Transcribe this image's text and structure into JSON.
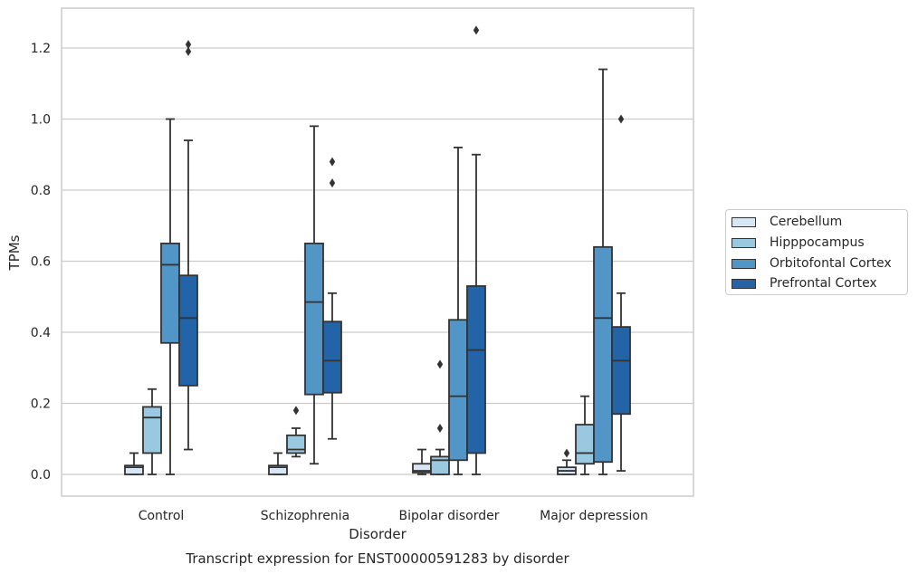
{
  "chart_data": {
    "type": "box",
    "title": "Transcript expression for ENST00000591283 by disorder",
    "xlabel": "Disorder",
    "ylabel": "TPMs",
    "ylim": [
      -0.06,
      1.32
    ],
    "yticks": [
      "0.0",
      "0.2",
      "0.4",
      "0.6",
      "0.8",
      "1.0",
      "1.2"
    ],
    "ytick_values": [
      0.0,
      0.2,
      0.4,
      0.6,
      0.8,
      1.0,
      1.2
    ],
    "grid": true,
    "legend_position": "right",
    "categories": [
      "Control",
      "Schizophrenia",
      "Bipolar disorder",
      "Major depression"
    ],
    "series": [
      {
        "name": "Cerebellum",
        "color": "#d6e6f4",
        "boxes": [
          {
            "q1": 0.0,
            "median": 0.02,
            "q3": 0.025,
            "whisker_low": 0.0,
            "whisker_high": 0.06,
            "outliers": []
          },
          {
            "q1": 0.0,
            "median": 0.02,
            "q3": 0.025,
            "whisker_low": 0.0,
            "whisker_high": 0.06,
            "outliers": []
          },
          {
            "q1": 0.005,
            "median": 0.01,
            "q3": 0.03,
            "whisker_low": 0.0,
            "whisker_high": 0.07,
            "outliers": []
          },
          {
            "q1": 0.0,
            "median": 0.01,
            "q3": 0.02,
            "whisker_low": 0.0,
            "whisker_high": 0.04,
            "outliers": [
              0.06
            ]
          }
        ]
      },
      {
        "name": "Hipppocampus",
        "color": "#9ac8e0",
        "boxes": [
          {
            "q1": 0.06,
            "median": 0.16,
            "q3": 0.19,
            "whisker_low": 0.0,
            "whisker_high": 0.24,
            "outliers": []
          },
          {
            "q1": 0.06,
            "median": 0.07,
            "q3": 0.11,
            "whisker_low": 0.05,
            "whisker_high": 0.13,
            "outliers": [
              0.18
            ]
          },
          {
            "q1": 0.0,
            "median": 0.04,
            "q3": 0.05,
            "whisker_low": 0.0,
            "whisker_high": 0.07,
            "outliers": [
              0.13,
              0.31
            ]
          },
          {
            "q1": 0.03,
            "median": 0.06,
            "q3": 0.14,
            "whisker_low": 0.0,
            "whisker_high": 0.22,
            "outliers": []
          }
        ]
      },
      {
        "name": "Orbitofontal Cortex",
        "color": "#5296c7",
        "boxes": [
          {
            "q1": 0.37,
            "median": 0.59,
            "q3": 0.65,
            "whisker_low": 0.0,
            "whisker_high": 1.0,
            "outliers": []
          },
          {
            "q1": 0.225,
            "median": 0.485,
            "q3": 0.65,
            "whisker_low": 0.03,
            "whisker_high": 0.98,
            "outliers": []
          },
          {
            "q1": 0.04,
            "median": 0.22,
            "q3": 0.435,
            "whisker_low": 0.0,
            "whisker_high": 0.92,
            "outliers": []
          },
          {
            "q1": 0.035,
            "median": 0.44,
            "q3": 0.64,
            "whisker_low": 0.0,
            "whisker_high": 1.14,
            "outliers": []
          }
        ]
      },
      {
        "name": "Prefrontal Cortex",
        "color": "#2363a8",
        "boxes": [
          {
            "q1": 0.25,
            "median": 0.44,
            "q3": 0.56,
            "whisker_low": 0.07,
            "whisker_high": 0.94,
            "outliers": [
              1.19,
              1.21
            ]
          },
          {
            "q1": 0.23,
            "median": 0.32,
            "q3": 0.43,
            "whisker_low": 0.1,
            "whisker_high": 0.51,
            "outliers": [
              0.82,
              0.88
            ]
          },
          {
            "q1": 0.06,
            "median": 0.35,
            "q3": 0.53,
            "whisker_low": 0.0,
            "whisker_high": 0.9,
            "outliers": [
              1.25
            ]
          },
          {
            "q1": 0.17,
            "median": 0.32,
            "q3": 0.415,
            "whisker_low": 0.01,
            "whisker_high": 0.51,
            "outliers": [
              1.0
            ]
          }
        ]
      }
    ]
  }
}
